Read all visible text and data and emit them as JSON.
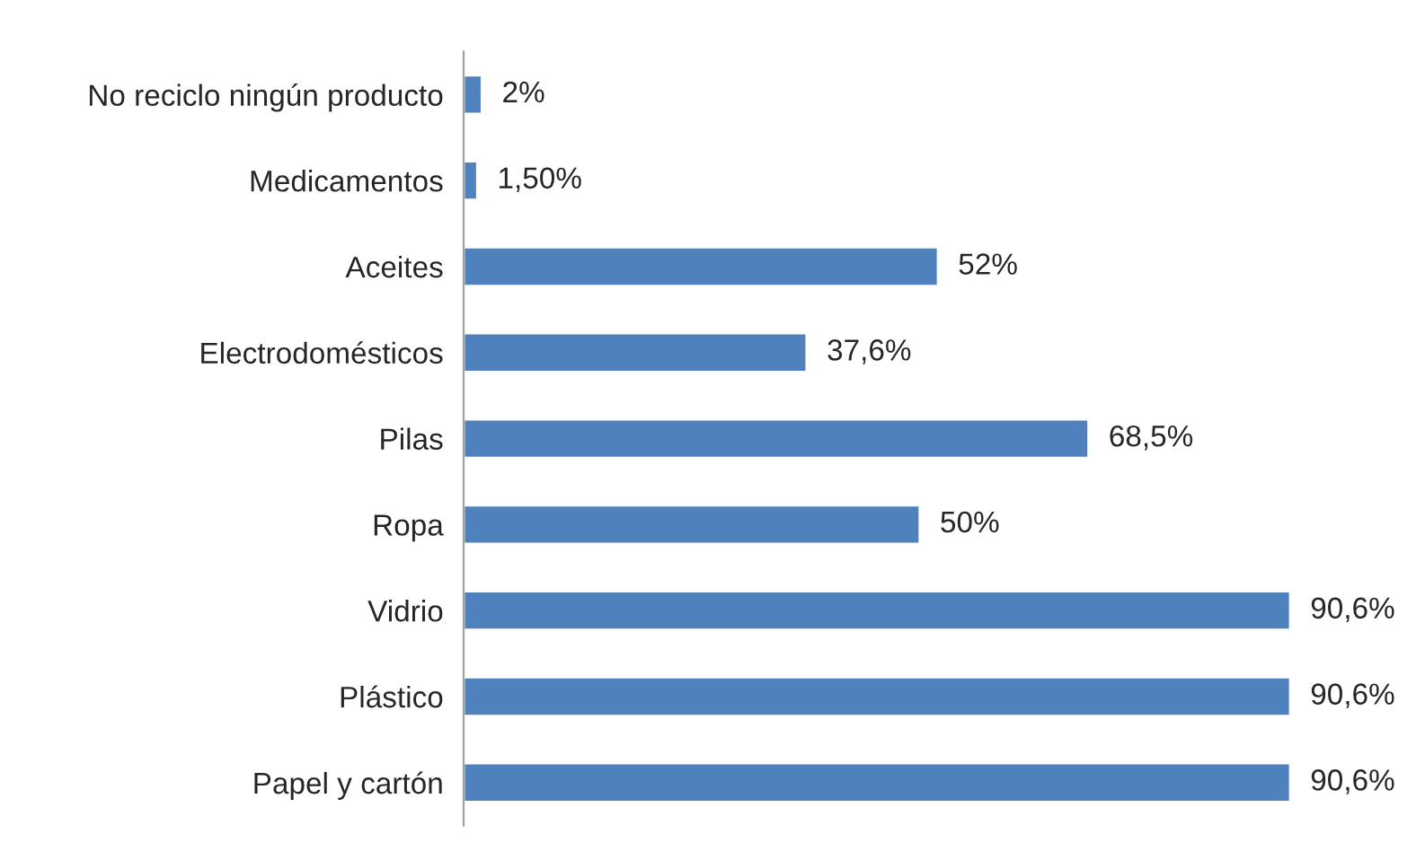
{
  "chart_data": {
    "type": "bar",
    "orientation": "horizontal",
    "categories": [
      "No reciclo ningún producto",
      "Medicamentos",
      "Aceites",
      "Electrodomésticos",
      "Pilas",
      "Ropa",
      "Vidrio",
      "Plástico",
      "Papel y cartón"
    ],
    "values": [
      2,
      1.5,
      52,
      37.6,
      68.5,
      50,
      90.6,
      90.6,
      90.6
    ],
    "value_labels": [
      "2%",
      "1,50%",
      "52%",
      "37,6%",
      "68,5%",
      "50%",
      "90,6%",
      "90,6%",
      "90,6%"
    ],
    "color": "#4f81bd",
    "grid": false,
    "legend": false
  }
}
